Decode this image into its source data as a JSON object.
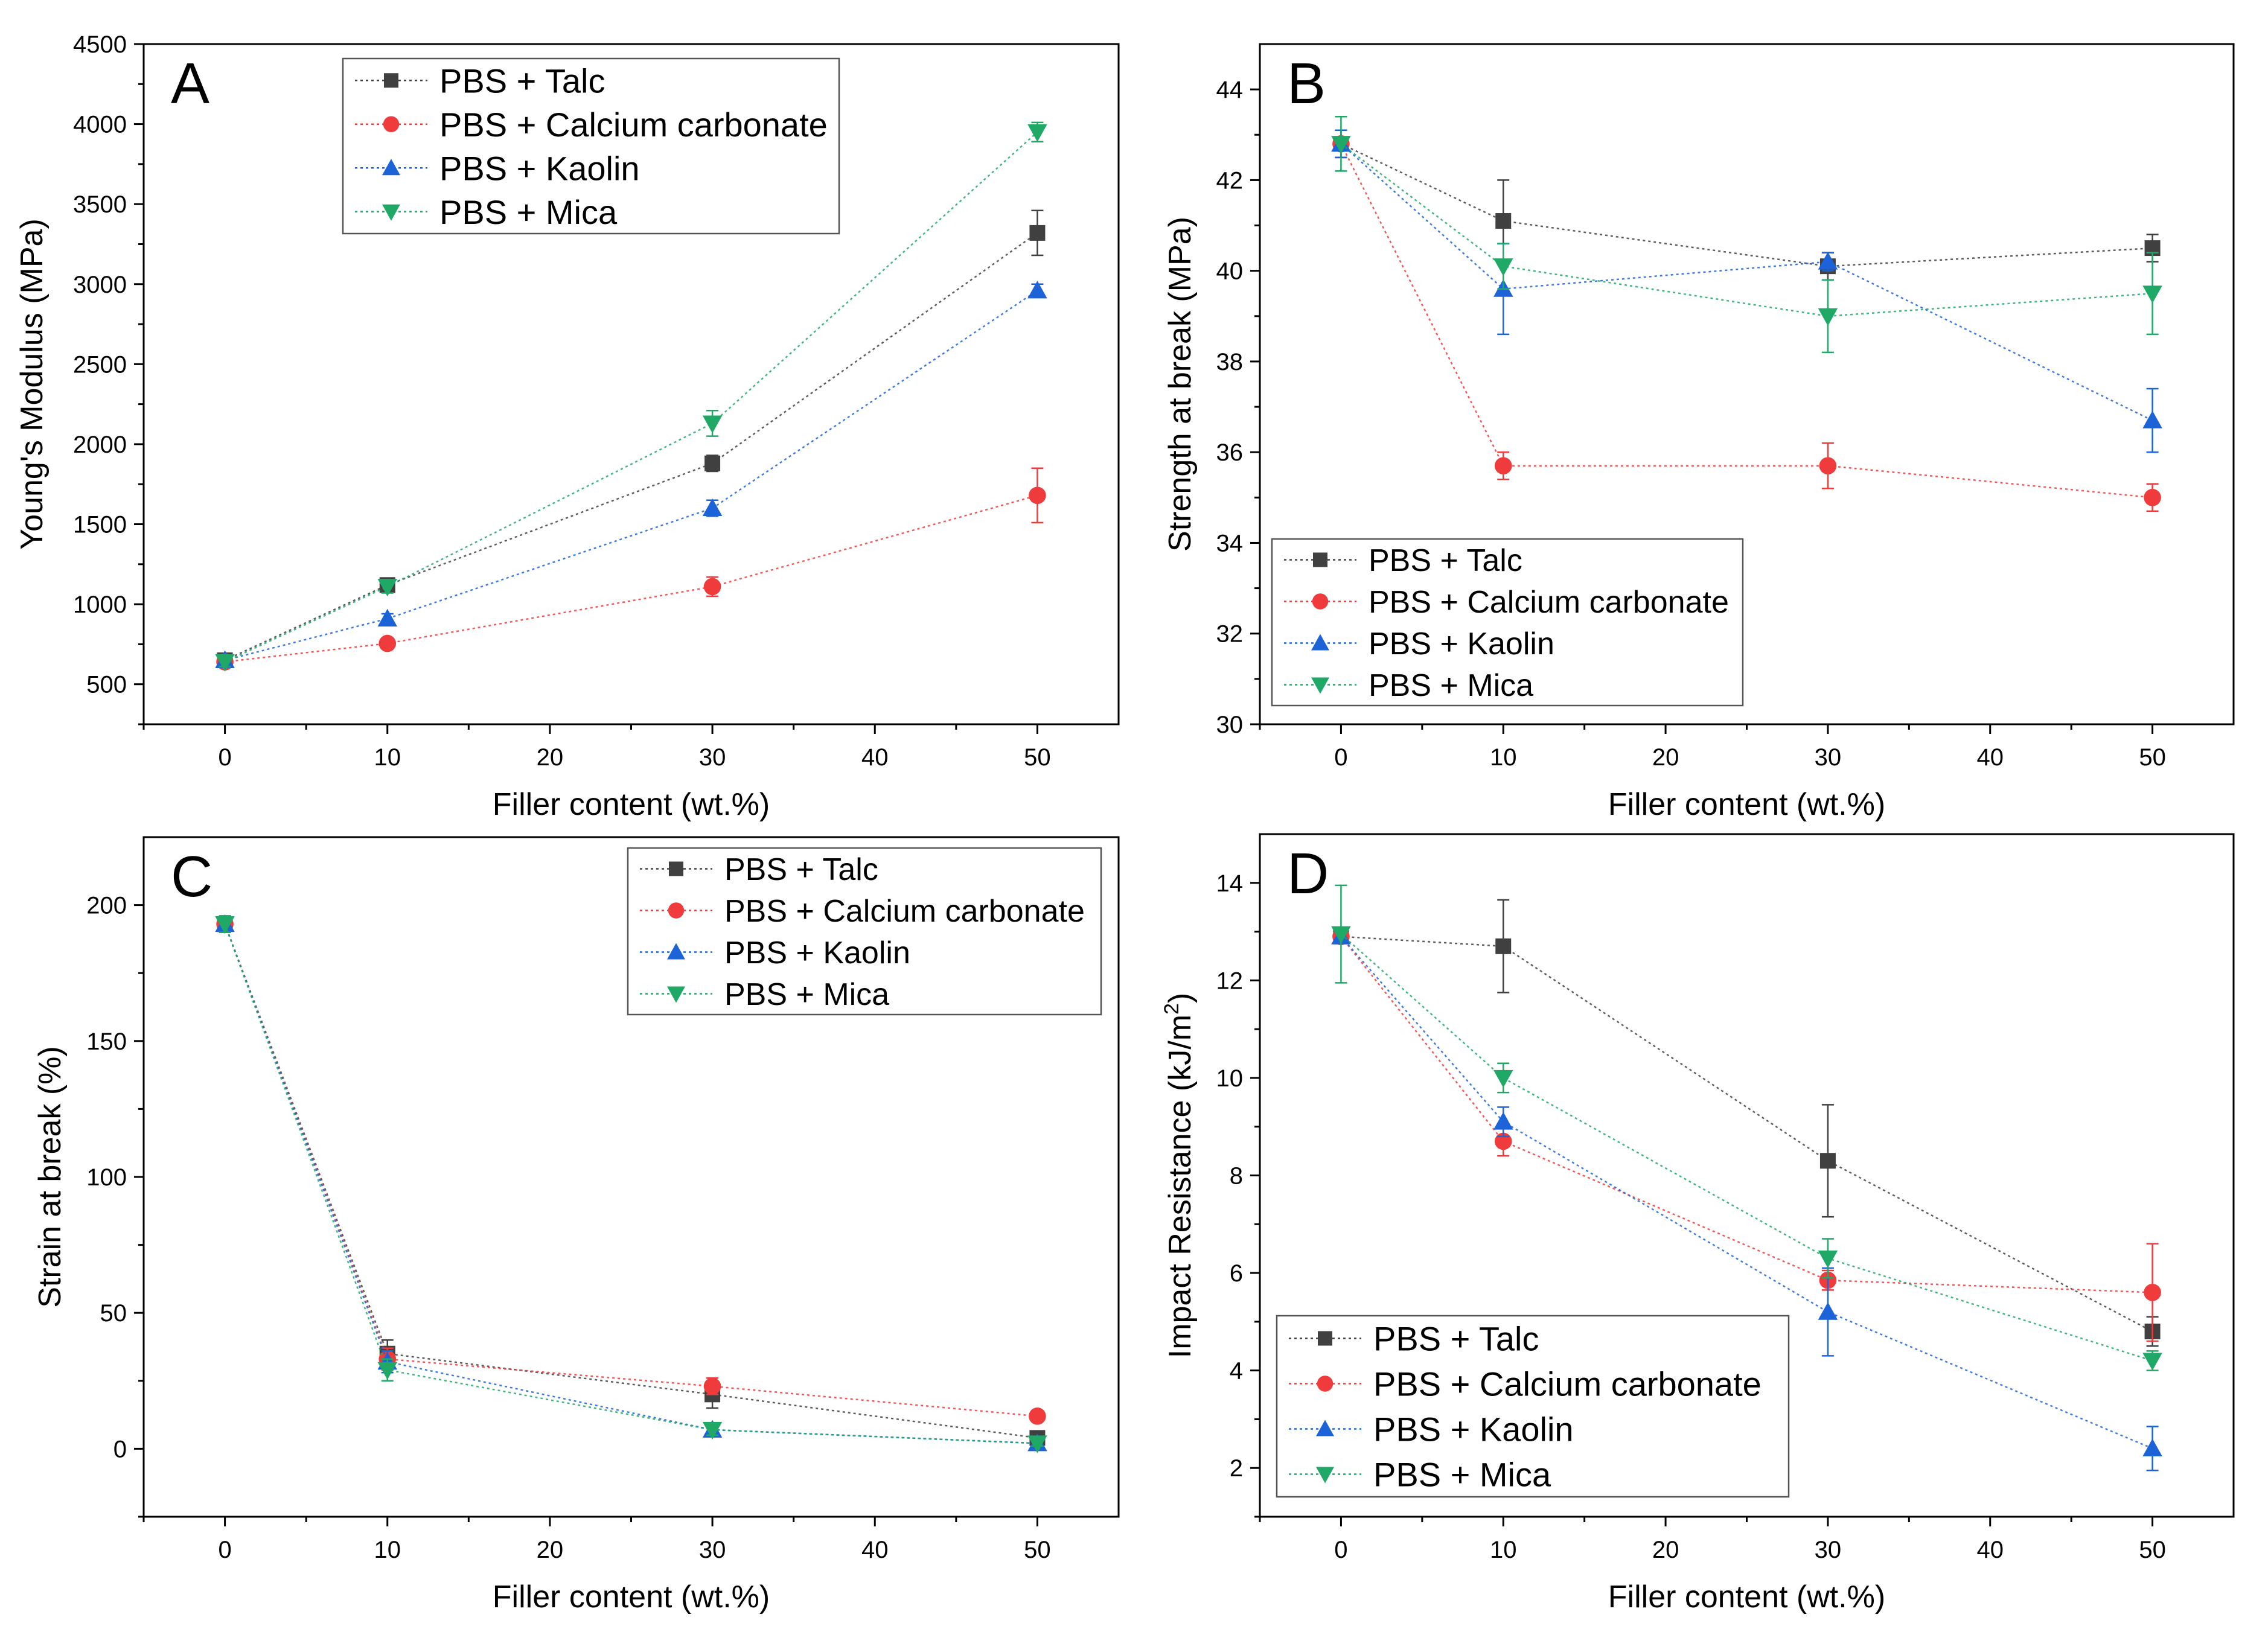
{
  "colors": {
    "talc": "#404040",
    "calcium": "#ef3b3b",
    "kaolin": "#1c63d8",
    "mica": "#1fa866",
    "axis": "#000000"
  },
  "series_defs": [
    {
      "key": "talc",
      "name": "PBS + Talc",
      "marker": "square"
    },
    {
      "key": "calcium",
      "name": "PBS + Calcium carbonate",
      "marker": "circle"
    },
    {
      "key": "kaolin",
      "name": "PBS + Kaolin",
      "marker": "triangle-up"
    },
    {
      "key": "mica",
      "name": "PBS + Mica",
      "marker": "triangle-down"
    }
  ],
  "chart_data": [
    {
      "id": "A",
      "type": "line",
      "title": "A",
      "xlabel": "Filler content (wt.%)",
      "ylabel": "Young's Modulus (MPa)",
      "xlim": [
        -5,
        55
      ],
      "ylim": [
        250,
        4500
      ],
      "xticks": [
        0,
        10,
        20,
        30,
        40,
        50
      ],
      "yticks": [
        500,
        1000,
        1500,
        2000,
        2500,
        3000,
        3500,
        4000,
        4500
      ],
      "legend": "top-left",
      "x": [
        0,
        10,
        30,
        50
      ],
      "series": [
        {
          "key": "talc",
          "name": "PBS + Talc",
          "values": [
            650,
            1120,
            1880,
            3320
          ],
          "errors": [
            30,
            40,
            50,
            140
          ]
        },
        {
          "key": "calcium",
          "name": "PBS + Calcium carbonate",
          "values": [
            640,
            755,
            1110,
            1680
          ],
          "errors": [
            30,
            30,
            60,
            170
          ]
        },
        {
          "key": "kaolin",
          "name": "PBS + Kaolin",
          "values": [
            650,
            910,
            1600,
            2960
          ],
          "errors": [
            30,
            30,
            50,
            40
          ]
        },
        {
          "key": "mica",
          "name": "PBS + Mica",
          "values": [
            640,
            1110,
            2130,
            3950
          ],
          "errors": [
            30,
            40,
            80,
            60
          ]
        }
      ]
    },
    {
      "id": "B",
      "type": "line",
      "title": "B",
      "xlabel": "Filler content (wt.%)",
      "ylabel": "Strength at break (MPa)",
      "xlim": [
        -5,
        55
      ],
      "ylim": [
        30,
        45
      ],
      "xticks": [
        0,
        10,
        20,
        30,
        40,
        50
      ],
      "yticks": [
        30,
        32,
        34,
        36,
        38,
        40,
        42,
        44
      ],
      "legend": "bottom-left",
      "x": [
        0,
        10,
        30,
        50
      ],
      "series": [
        {
          "key": "talc",
          "name": "PBS + Talc",
          "values": [
            42.8,
            41.1,
            40.1,
            40.5
          ],
          "errors": [
            0.3,
            0.9,
            0.3,
            0.3
          ]
        },
        {
          "key": "calcium",
          "name": "PBS + Calcium carbonate",
          "values": [
            42.8,
            35.7,
            35.7,
            35.0
          ],
          "errors": [
            0.3,
            0.3,
            0.5,
            0.3
          ]
        },
        {
          "key": "kaolin",
          "name": "PBS + Kaolin",
          "values": [
            42.8,
            39.6,
            40.2,
            36.7
          ],
          "errors": [
            0.3,
            1.0,
            0.2,
            0.7
          ]
        },
        {
          "key": "mica",
          "name": "PBS + Mica",
          "values": [
            42.8,
            40.1,
            39.0,
            39.5
          ],
          "errors": [
            0.6,
            0.5,
            0.8,
            0.9
          ]
        }
      ]
    },
    {
      "id": "C",
      "type": "line",
      "title": "C",
      "xlabel": "Filler content (wt.%)",
      "ylabel": "Strain at break (%)",
      "xlim": [
        -5,
        55
      ],
      "ylim": [
        -25,
        225
      ],
      "xticks": [
        0,
        10,
        20,
        30,
        40,
        50
      ],
      "yticks": [
        0,
        50,
        100,
        150,
        200
      ],
      "legend": "top-right",
      "x": [
        0,
        10,
        30,
        50
      ],
      "series": [
        {
          "key": "talc",
          "name": "PBS + Talc",
          "values": [
            193,
            35,
            20,
            4
          ],
          "errors": [
            3,
            5,
            5,
            2
          ]
        },
        {
          "key": "calcium",
          "name": "PBS + Calcium carbonate",
          "values": [
            193,
            33,
            23,
            12
          ],
          "errors": [
            3,
            4,
            3,
            2
          ]
        },
        {
          "key": "kaolin",
          "name": "PBS + Kaolin",
          "values": [
            193,
            32,
            7,
            2
          ],
          "errors": [
            3,
            4,
            2,
            1
          ]
        },
        {
          "key": "mica",
          "name": "PBS + Mica",
          "values": [
            193,
            29,
            7,
            2
          ],
          "errors": [
            3,
            4,
            2,
            1
          ]
        }
      ]
    },
    {
      "id": "D",
      "type": "line",
      "title": "D",
      "xlabel": "Filler content (wt.%)",
      "ylabel_main": "Impact Resistance (kJ/m",
      "ylabel_sup": "2",
      "ylabel_end": ")",
      "xlim": [
        -5,
        55
      ],
      "ylim": [
        1,
        15
      ],
      "xticks": [
        0,
        10,
        20,
        30,
        40,
        50
      ],
      "yticks": [
        2,
        4,
        6,
        8,
        10,
        12,
        14
      ],
      "legend": "bottom-left",
      "x": [
        0,
        10,
        30,
        50
      ],
      "series": [
        {
          "key": "talc",
          "name": "PBS + Talc",
          "values": [
            12.9,
            12.7,
            8.3,
            4.8
          ],
          "errors": [
            0.1,
            0.95,
            1.15,
            0.3
          ]
        },
        {
          "key": "calcium",
          "name": "PBS + Calcium carbonate",
          "values": [
            12.9,
            8.7,
            5.85,
            5.6
          ],
          "errors": [
            0.1,
            0.3,
            0.2,
            1.0
          ]
        },
        {
          "key": "kaolin",
          "name": "PBS + Kaolin",
          "values": [
            12.9,
            9.1,
            5.2,
            2.4
          ],
          "errors": [
            0.1,
            0.3,
            0.9,
            0.45
          ]
        },
        {
          "key": "mica",
          "name": "PBS + Mica",
          "values": [
            12.95,
            10.0,
            6.3,
            4.2
          ],
          "errors": [
            1.0,
            0.3,
            0.4,
            0.2
          ]
        }
      ]
    }
  ]
}
